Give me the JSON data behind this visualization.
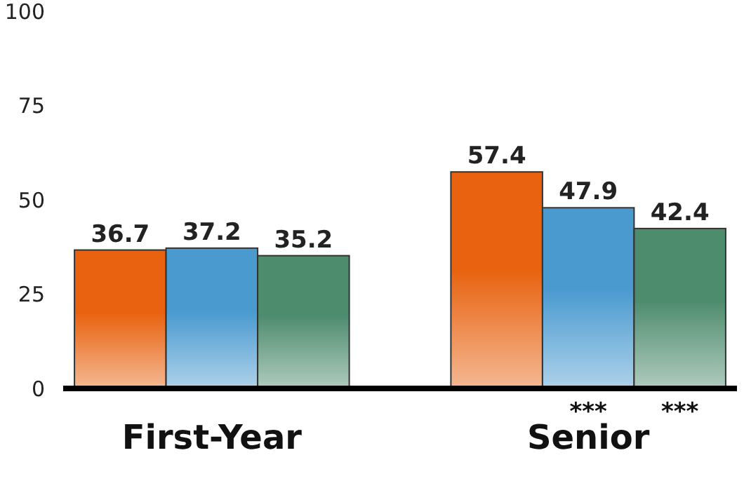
{
  "chart_data": {
    "type": "bar",
    "categories": [
      "First-Year",
      "Senior"
    ],
    "series": [
      {
        "color": "#e8620f",
        "values": [
          36.7,
          57.4
        ]
      },
      {
        "color": "#4a9ad0",
        "values": [
          37.2,
          47.9
        ]
      },
      {
        "color": "#4e8c6e",
        "values": [
          35.2,
          42.4
        ]
      }
    ],
    "ylim": [
      0,
      100
    ],
    "yticks": [
      0,
      25,
      50,
      75,
      100
    ],
    "grid": false,
    "data_labels": true,
    "annotations": [
      "***",
      "***"
    ]
  }
}
